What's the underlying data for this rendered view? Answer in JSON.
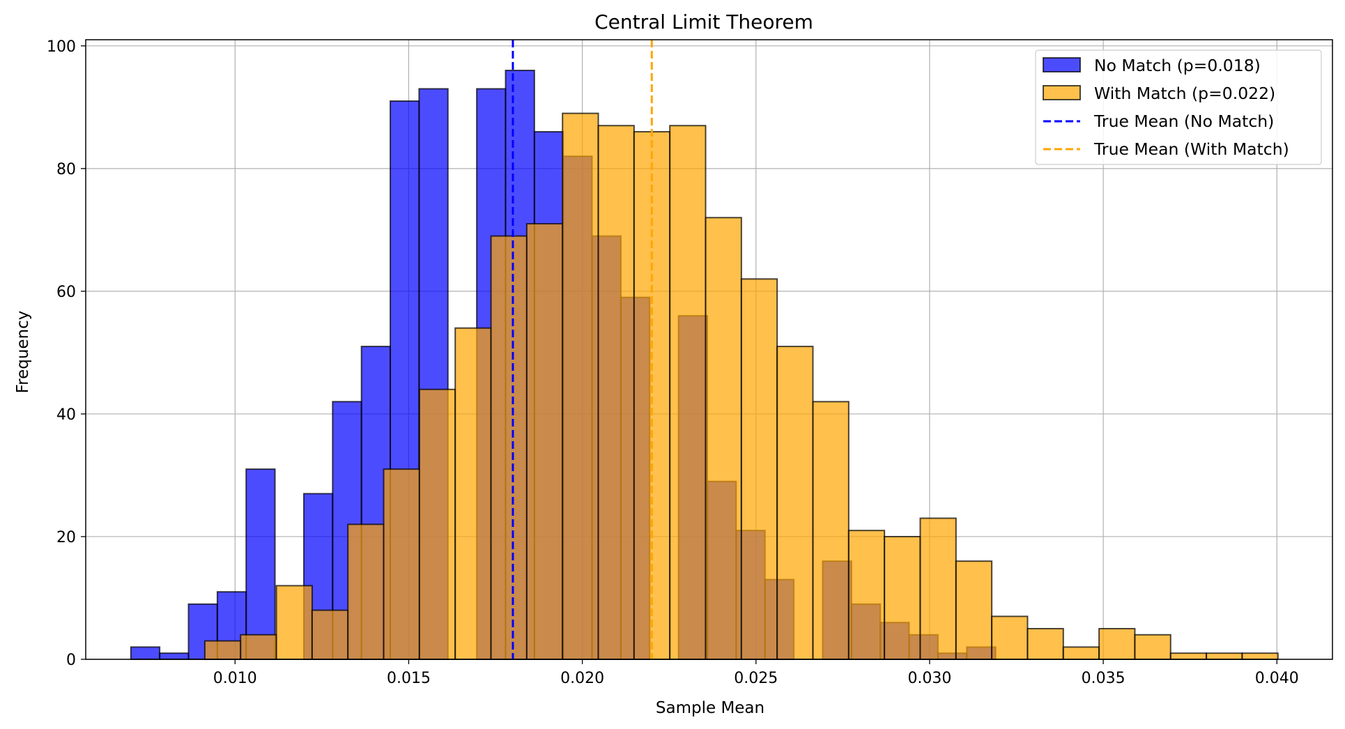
{
  "chart_data": {
    "type": "bar",
    "subtype": "overlapping-histogram",
    "title": "Central Limit Theorem",
    "xlabel": "Sample Mean",
    "ylabel": "Frequency",
    "xlim": [
      0.0057,
      0.0416
    ],
    "ylim": [
      0,
      101
    ],
    "xticks": [
      0.01,
      0.015,
      0.02,
      0.025,
      0.03,
      0.035,
      0.04
    ],
    "xtick_labels": [
      "0.010",
      "0.015",
      "0.020",
      "0.025",
      "0.030",
      "0.035",
      "0.040"
    ],
    "yticks": [
      0,
      20,
      40,
      60,
      80,
      100
    ],
    "ytick_labels": [
      "0",
      "20",
      "40",
      "60",
      "80",
      "100"
    ],
    "grid": true,
    "legend_position": "top-right",
    "series": [
      {
        "name": "No Match (p=0.018)",
        "color": "#0000ff",
        "opacity": 0.7,
        "bin_edges": [
          0.007,
          0.00783,
          0.00866,
          0.00949,
          0.01032,
          0.01115,
          0.01198,
          0.01281,
          0.01364,
          0.01447,
          0.0153,
          0.01613,
          0.01696,
          0.01779,
          0.01862,
          0.01945,
          0.02028,
          0.02111,
          0.02194,
          0.02277,
          0.0236,
          0.02443,
          0.02526,
          0.02609,
          0.02692,
          0.02775,
          0.02858,
          0.02941,
          0.03024,
          0.03107,
          0.0319
        ],
        "counts": [
          2,
          1,
          9,
          11,
          31,
          0,
          27,
          42,
          51,
          91,
          93,
          0,
          93,
          96,
          86,
          82,
          69,
          59,
          0,
          56,
          29,
          21,
          13,
          0,
          16,
          9,
          6,
          4,
          1,
          2
        ]
      },
      {
        "name": "With Match (p=0.022)",
        "color": "#ffa500",
        "opacity": 0.7,
        "bin_edges": [
          0.00913,
          0.01016,
          0.01119,
          0.01222,
          0.01325,
          0.01428,
          0.01531,
          0.01634,
          0.01737,
          0.0184,
          0.01943,
          0.02046,
          0.02149,
          0.02252,
          0.02355,
          0.02458,
          0.02561,
          0.02664,
          0.02767,
          0.0287,
          0.02973,
          0.03076,
          0.03179,
          0.03282,
          0.03385,
          0.03488,
          0.03591,
          0.03694,
          0.03797,
          0.039,
          0.04003
        ],
        "counts": [
          3,
          4,
          12,
          8,
          22,
          31,
          44,
          54,
          69,
          71,
          89,
          87,
          86,
          87,
          72,
          62,
          51,
          42,
          21,
          20,
          23,
          16,
          7,
          5,
          2,
          5,
          4,
          1,
          1,
          1
        ]
      }
    ],
    "reference_lines": [
      {
        "name": "True Mean (No Match)",
        "x": 0.018,
        "color": "#0000ff",
        "style": "dashed"
      },
      {
        "name": "True Mean (With Match)",
        "x": 0.022,
        "color": "#ffa500",
        "style": "dashed"
      }
    ]
  }
}
